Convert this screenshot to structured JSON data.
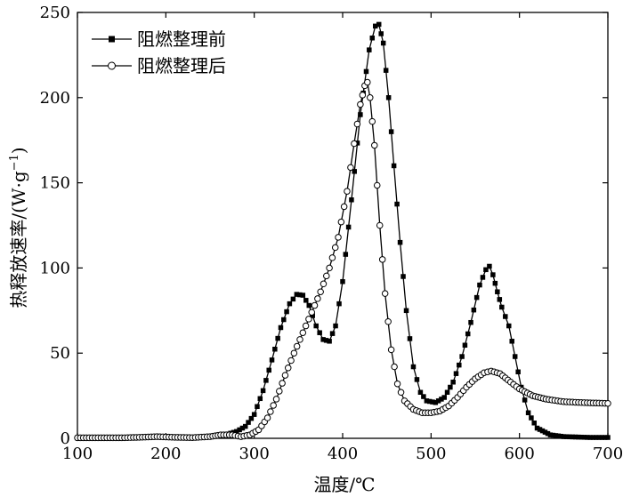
{
  "chart_data": {
    "type": "line",
    "xlabel": "温度/℃",
    "ylabel": "热释放速率/(W·g",
    "ylabel_sup": "−1",
    "ylabel_close": ")",
    "xlim": [
      100,
      700
    ],
    "ylim": [
      0,
      250
    ],
    "xticks": [
      100,
      200,
      300,
      400,
      500,
      600,
      700
    ],
    "yticks": [
      0,
      50,
      100,
      150,
      200,
      250
    ],
    "grid": false,
    "legend_position": "top-left",
    "series": [
      {
        "name": "阻燃整理前",
        "marker": "filled-square",
        "color": "#000000",
        "points": [
          [
            100,
            0.3
          ],
          [
            150,
            0.3
          ],
          [
            170,
            0.6
          ],
          [
            190,
            1.2
          ],
          [
            210,
            0.8
          ],
          [
            230,
            0.5
          ],
          [
            250,
            1.0
          ],
          [
            260,
            1.5
          ],
          [
            270,
            2.5
          ],
          [
            280,
            4.0
          ],
          [
            290,
            7.0
          ],
          [
            300,
            14.0
          ],
          [
            310,
            28.0
          ],
          [
            320,
            46.0
          ],
          [
            330,
            65.0
          ],
          [
            340,
            79.0
          ],
          [
            348,
            84.5
          ],
          [
            355,
            84.0
          ],
          [
            362,
            78.0
          ],
          [
            370,
            66.0
          ],
          [
            378,
            58.0
          ],
          [
            385,
            57.0
          ],
          [
            392,
            66.0
          ],
          [
            400,
            92.0
          ],
          [
            410,
            140.0
          ],
          [
            420,
            190.0
          ],
          [
            430,
            228.0
          ],
          [
            437,
            242.0
          ],
          [
            441,
            243.0
          ],
          [
            446,
            232.0
          ],
          [
            452,
            200.0
          ],
          [
            458,
            160.0
          ],
          [
            465,
            115.0
          ],
          [
            472,
            75.0
          ],
          [
            480,
            42.0
          ],
          [
            488,
            27.0
          ],
          [
            495,
            22.0
          ],
          [
            505,
            21.0
          ],
          [
            515,
            24.0
          ],
          [
            525,
            33.0
          ],
          [
            535,
            48.0
          ],
          [
            545,
            68.0
          ],
          [
            555,
            90.0
          ],
          [
            562,
            99.0
          ],
          [
            566,
            101.0
          ],
          [
            570,
            96.0
          ],
          [
            575,
            86.0
          ],
          [
            580,
            77.0
          ],
          [
            588,
            66.0
          ],
          [
            595,
            48.0
          ],
          [
            602,
            30.0
          ],
          [
            610,
            15.0
          ],
          [
            620,
            6.0
          ],
          [
            635,
            2.0
          ],
          [
            650,
            1.0
          ],
          [
            680,
            0.5
          ],
          [
            700,
            0.5
          ]
        ]
      },
      {
        "name": "阻燃整理后",
        "marker": "open-circle",
        "color": "#000000",
        "points": [
          [
            100,
            0.3
          ],
          [
            150,
            0.3
          ],
          [
            170,
            0.6
          ],
          [
            190,
            1.0
          ],
          [
            210,
            0.6
          ],
          [
            230,
            0.4
          ],
          [
            250,
            1.0
          ],
          [
            262,
            2.0
          ],
          [
            275,
            2.0
          ],
          [
            285,
            1.0
          ],
          [
            295,
            2.0
          ],
          [
            305,
            5.0
          ],
          [
            315,
            12.0
          ],
          [
            325,
            23.0
          ],
          [
            335,
            37.0
          ],
          [
            345,
            50.0
          ],
          [
            355,
            62.0
          ],
          [
            365,
            74.0
          ],
          [
            375,
            86.0
          ],
          [
            385,
            100.0
          ],
          [
            395,
            118.0
          ],
          [
            405,
            145.0
          ],
          [
            413,
            173.0
          ],
          [
            420,
            196.0
          ],
          [
            425,
            207.0
          ],
          [
            428,
            209.0
          ],
          [
            431,
            200.0
          ],
          [
            436,
            172.0
          ],
          [
            442,
            125.0
          ],
          [
            448,
            85.0
          ],
          [
            455,
            52.0
          ],
          [
            462,
            32.0
          ],
          [
            470,
            22.0
          ],
          [
            480,
            17.0
          ],
          [
            490,
            15.0
          ],
          [
            500,
            15.0
          ],
          [
            510,
            16.0
          ],
          [
            520,
            19.0
          ],
          [
            530,
            24.0
          ],
          [
            540,
            30.0
          ],
          [
            550,
            35.0
          ],
          [
            560,
            38.5
          ],
          [
            568,
            39.5
          ],
          [
            578,
            38.0
          ],
          [
            590,
            33.0
          ],
          [
            600,
            29.0
          ],
          [
            615,
            25.0
          ],
          [
            630,
            23.0
          ],
          [
            650,
            21.5
          ],
          [
            670,
            21.0
          ],
          [
            700,
            20.5
          ]
        ]
      }
    ]
  }
}
